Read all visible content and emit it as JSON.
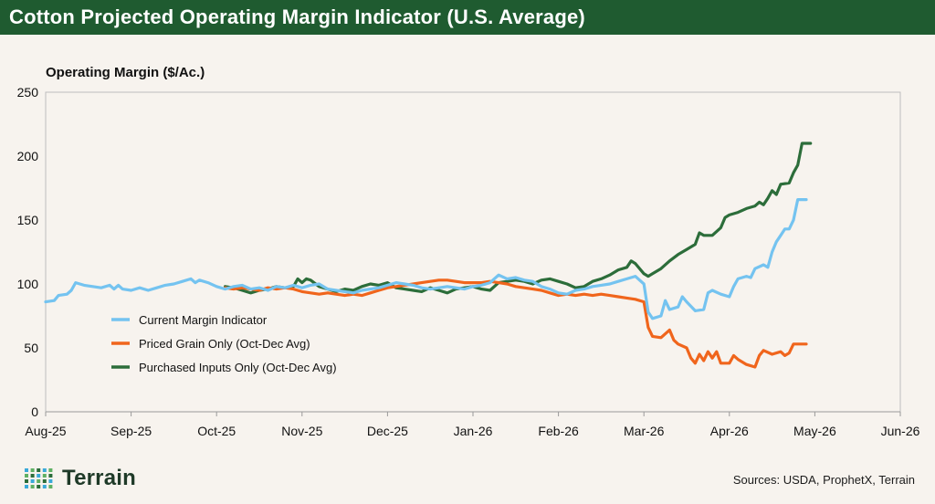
{
  "header": {
    "title": "Cotton Projected Operating Margin Indicator (U.S. Average)"
  },
  "footer": {
    "logo_text": "Terrain",
    "sources": "Sources: USDA, ProphetX, Terrain"
  },
  "colors": {
    "title_bar": "#1f5b30",
    "current": "#74c3f0",
    "priced": "#f0651c",
    "purchased": "#2c6d3a",
    "logo_dots": [
      "#3aa9d9",
      "#5fb063",
      "#2c6d3a"
    ]
  },
  "chart_data": {
    "type": "line",
    "ylabel": "Operating Margin ($/Ac.)",
    "ylim": [
      0,
      250
    ],
    "yticks": [
      0,
      50,
      100,
      150,
      200,
      250
    ],
    "xlim": [
      0,
      10
    ],
    "xticks": [
      {
        "x": 0,
        "label": "Aug-25"
      },
      {
        "x": 1,
        "label": "Sep-25"
      },
      {
        "x": 2,
        "label": "Oct-25"
      },
      {
        "x": 3,
        "label": "Nov-25"
      },
      {
        "x": 4,
        "label": "Dec-25"
      },
      {
        "x": 5,
        "label": "Jan-26"
      },
      {
        "x": 6,
        "label": "Feb-26"
      },
      {
        "x": 7,
        "label": "Mar-26"
      },
      {
        "x": 8,
        "label": "Apr-26"
      },
      {
        "x": 9,
        "label": "May-26"
      },
      {
        "x": 10,
        "label": "Jun-26"
      }
    ],
    "grid": false,
    "legend_position": "lower-left",
    "series": [
      {
        "name": "Current Margin Indicator",
        "color": "#74c3f0",
        "points": [
          [
            0.0,
            86
          ],
          [
            0.1,
            87
          ],
          [
            0.15,
            91
          ],
          [
            0.25,
            92
          ],
          [
            0.3,
            95
          ],
          [
            0.35,
            101
          ],
          [
            0.45,
            99
          ],
          [
            0.55,
            98
          ],
          [
            0.65,
            97
          ],
          [
            0.75,
            99
          ],
          [
            0.8,
            96
          ],
          [
            0.85,
            99
          ],
          [
            0.9,
            96
          ],
          [
            1.0,
            95
          ],
          [
            1.1,
            97
          ],
          [
            1.2,
            95
          ],
          [
            1.3,
            97
          ],
          [
            1.4,
            99
          ],
          [
            1.5,
            100
          ],
          [
            1.6,
            102
          ],
          [
            1.7,
            104
          ],
          [
            1.75,
            101
          ],
          [
            1.8,
            103
          ],
          [
            1.9,
            101
          ],
          [
            2.0,
            98
          ],
          [
            2.1,
            96
          ],
          [
            2.2,
            98
          ],
          [
            2.3,
            99
          ],
          [
            2.4,
            96
          ],
          [
            2.5,
            97
          ],
          [
            2.6,
            95
          ],
          [
            2.7,
            98
          ],
          [
            2.8,
            97
          ],
          [
            2.9,
            99
          ],
          [
            3.0,
            97
          ],
          [
            3.1,
            99
          ],
          [
            3.2,
            100
          ],
          [
            3.3,
            96
          ],
          [
            3.4,
            95
          ],
          [
            3.5,
            94
          ],
          [
            3.6,
            93
          ],
          [
            3.7,
            95
          ],
          [
            3.8,
            96
          ],
          [
            3.9,
            97
          ],
          [
            4.0,
            99
          ],
          [
            4.1,
            101
          ],
          [
            4.2,
            100
          ],
          [
            4.3,
            99
          ],
          [
            4.4,
            97
          ],
          [
            4.5,
            96
          ],
          [
            4.6,
            97
          ],
          [
            4.7,
            98
          ],
          [
            4.8,
            97
          ],
          [
            4.9,
            96
          ],
          [
            5.0,
            98
          ],
          [
            5.1,
            99
          ],
          [
            5.2,
            101
          ],
          [
            5.3,
            107
          ],
          [
            5.4,
            104
          ],
          [
            5.5,
            105
          ],
          [
            5.6,
            103
          ],
          [
            5.7,
            102
          ],
          [
            5.8,
            98
          ],
          [
            5.9,
            96
          ],
          [
            6.0,
            93
          ],
          [
            6.1,
            92
          ],
          [
            6.2,
            95
          ],
          [
            6.3,
            96
          ],
          [
            6.4,
            98
          ],
          [
            6.5,
            99
          ],
          [
            6.6,
            100
          ],
          [
            6.7,
            102
          ],
          [
            6.8,
            104
          ],
          [
            6.9,
            106
          ],
          [
            6.95,
            103
          ],
          [
            7.0,
            100
          ],
          [
            7.05,
            78
          ],
          [
            7.1,
            73
          ],
          [
            7.2,
            75
          ],
          [
            7.25,
            87
          ],
          [
            7.3,
            80
          ],
          [
            7.4,
            82
          ],
          [
            7.45,
            90
          ],
          [
            7.5,
            86
          ],
          [
            7.6,
            79
          ],
          [
            7.7,
            80
          ],
          [
            7.75,
            93
          ],
          [
            7.8,
            95
          ],
          [
            7.9,
            92
          ],
          [
            8.0,
            90
          ],
          [
            8.05,
            98
          ],
          [
            8.1,
            104
          ],
          [
            8.2,
            106
          ],
          [
            8.25,
            105
          ],
          [
            8.3,
            112
          ],
          [
            8.4,
            115
          ],
          [
            8.45,
            113
          ],
          [
            8.5,
            125
          ],
          [
            8.55,
            133
          ],
          [
            8.6,
            138
          ],
          [
            8.65,
            143
          ],
          [
            8.7,
            143
          ],
          [
            8.75,
            150
          ],
          [
            8.8,
            166
          ],
          [
            8.9,
            166
          ]
        ]
      },
      {
        "name": "Priced Grain Only (Oct-Dec Avg)",
        "color": "#f0651c",
        "points": [
          [
            2.1,
            97
          ],
          [
            2.2,
            96
          ],
          [
            2.3,
            97
          ],
          [
            2.4,
            96
          ],
          [
            2.5,
            95
          ],
          [
            2.6,
            97
          ],
          [
            2.7,
            96
          ],
          [
            2.8,
            97
          ],
          [
            2.9,
            96
          ],
          [
            3.0,
            94
          ],
          [
            3.1,
            93
          ],
          [
            3.2,
            92
          ],
          [
            3.3,
            93
          ],
          [
            3.4,
            92
          ],
          [
            3.5,
            91
          ],
          [
            3.6,
            92
          ],
          [
            3.7,
            91
          ],
          [
            3.8,
            93
          ],
          [
            3.9,
            95
          ],
          [
            4.0,
            97
          ],
          [
            4.1,
            98
          ],
          [
            4.2,
            99
          ],
          [
            4.3,
            100
          ],
          [
            4.4,
            101
          ],
          [
            4.5,
            102
          ],
          [
            4.6,
            103
          ],
          [
            4.7,
            103
          ],
          [
            4.8,
            102
          ],
          [
            4.9,
            101
          ],
          [
            5.0,
            101
          ],
          [
            5.1,
            101
          ],
          [
            5.2,
            102
          ],
          [
            5.3,
            101
          ],
          [
            5.4,
            100
          ],
          [
            5.5,
            98
          ],
          [
            5.6,
            97
          ],
          [
            5.7,
            96
          ],
          [
            5.8,
            95
          ],
          [
            5.9,
            93
          ],
          [
            6.0,
            91
          ],
          [
            6.1,
            92
          ],
          [
            6.2,
            91
          ],
          [
            6.3,
            92
          ],
          [
            6.4,
            91
          ],
          [
            6.5,
            92
          ],
          [
            6.6,
            91
          ],
          [
            6.7,
            90
          ],
          [
            6.8,
            89
          ],
          [
            6.9,
            88
          ],
          [
            7.0,
            86
          ],
          [
            7.05,
            66
          ],
          [
            7.1,
            59
          ],
          [
            7.2,
            58
          ],
          [
            7.3,
            64
          ],
          [
            7.35,
            56
          ],
          [
            7.4,
            53
          ],
          [
            7.5,
            50
          ],
          [
            7.55,
            42
          ],
          [
            7.6,
            38
          ],
          [
            7.65,
            45
          ],
          [
            7.7,
            40
          ],
          [
            7.75,
            47
          ],
          [
            7.8,
            42
          ],
          [
            7.85,
            47
          ],
          [
            7.9,
            38
          ],
          [
            8.0,
            38
          ],
          [
            8.05,
            44
          ],
          [
            8.1,
            41
          ],
          [
            8.2,
            37
          ],
          [
            8.3,
            35
          ],
          [
            8.35,
            44
          ],
          [
            8.4,
            48
          ],
          [
            8.5,
            45
          ],
          [
            8.6,
            47
          ],
          [
            8.65,
            44
          ],
          [
            8.7,
            46
          ],
          [
            8.75,
            53
          ],
          [
            8.9,
            53
          ]
        ]
      },
      {
        "name": "Purchased Inputs Only (Oct-Dec Avg)",
        "color": "#2c6d3a",
        "points": [
          [
            2.1,
            98
          ],
          [
            2.2,
            97
          ],
          [
            2.3,
            95
          ],
          [
            2.4,
            93
          ],
          [
            2.5,
            95
          ],
          [
            2.6,
            96
          ],
          [
            2.7,
            98
          ],
          [
            2.8,
            97
          ],
          [
            2.9,
            98
          ],
          [
            2.95,
            104
          ],
          [
            3.0,
            101
          ],
          [
            3.05,
            104
          ],
          [
            3.1,
            103
          ],
          [
            3.2,
            98
          ],
          [
            3.3,
            96
          ],
          [
            3.4,
            94
          ],
          [
            3.5,
            96
          ],
          [
            3.6,
            95
          ],
          [
            3.7,
            98
          ],
          [
            3.8,
            100
          ],
          [
            3.9,
            99
          ],
          [
            4.0,
            101
          ],
          [
            4.1,
            97
          ],
          [
            4.2,
            96
          ],
          [
            4.3,
            95
          ],
          [
            4.4,
            94
          ],
          [
            4.5,
            97
          ],
          [
            4.6,
            95
          ],
          [
            4.7,
            93
          ],
          [
            4.8,
            96
          ],
          [
            4.9,
            97
          ],
          [
            5.0,
            98
          ],
          [
            5.1,
            96
          ],
          [
            5.2,
            95
          ],
          [
            5.3,
            101
          ],
          [
            5.4,
            102
          ],
          [
            5.5,
            103
          ],
          [
            5.6,
            102
          ],
          [
            5.7,
            100
          ],
          [
            5.8,
            103
          ],
          [
            5.9,
            104
          ],
          [
            6.0,
            102
          ],
          [
            6.1,
            100
          ],
          [
            6.2,
            97
          ],
          [
            6.3,
            98
          ],
          [
            6.4,
            102
          ],
          [
            6.5,
            104
          ],
          [
            6.6,
            107
          ],
          [
            6.7,
            111
          ],
          [
            6.8,
            113
          ],
          [
            6.85,
            118
          ],
          [
            6.9,
            116
          ],
          [
            7.0,
            108
          ],
          [
            7.05,
            106
          ],
          [
            7.1,
            108
          ],
          [
            7.2,
            112
          ],
          [
            7.3,
            118
          ],
          [
            7.4,
            123
          ],
          [
            7.5,
            127
          ],
          [
            7.6,
            131
          ],
          [
            7.65,
            140
          ],
          [
            7.7,
            138
          ],
          [
            7.8,
            138
          ],
          [
            7.9,
            144
          ],
          [
            7.95,
            152
          ],
          [
            8.0,
            154
          ],
          [
            8.1,
            156
          ],
          [
            8.2,
            159
          ],
          [
            8.3,
            161
          ],
          [
            8.35,
            164
          ],
          [
            8.4,
            162
          ],
          [
            8.45,
            167
          ],
          [
            8.5,
            173
          ],
          [
            8.55,
            170
          ],
          [
            8.6,
            178
          ],
          [
            8.7,
            179
          ],
          [
            8.75,
            187
          ],
          [
            8.8,
            193
          ],
          [
            8.85,
            210
          ],
          [
            8.95,
            210
          ]
        ]
      }
    ]
  }
}
